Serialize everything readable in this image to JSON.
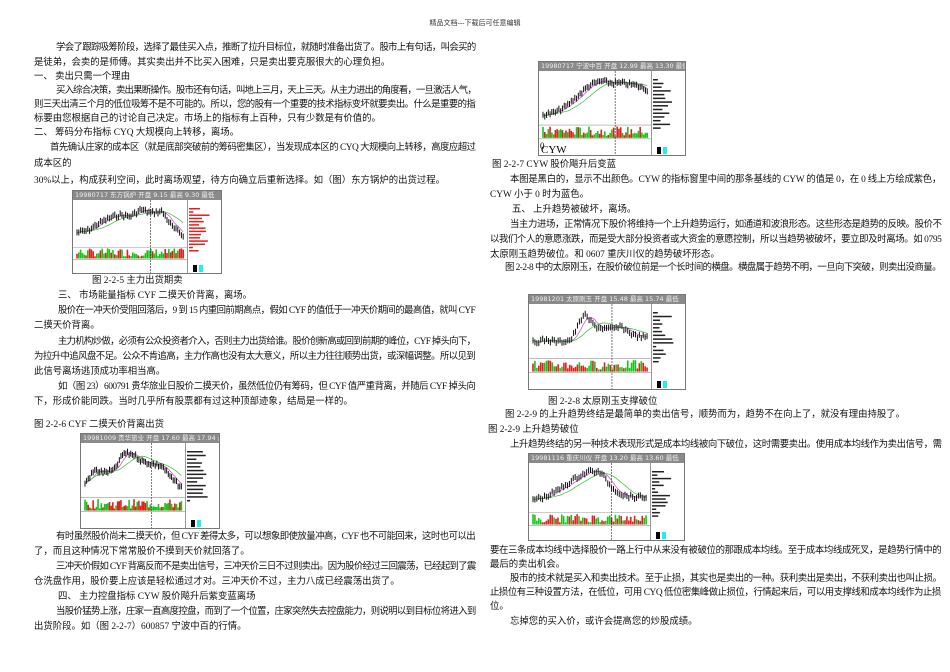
{
  "header": "精品文档---下载后可任意编辑",
  "left": [
    "学会了跟踪吸筹阶段，选择了最佳买入点，推断了拉升目标位，就随时准备出货了。股市上有句话，叫会买的",
    "是徒弟，会卖的是师傅。其实卖出并不比买入困难，只是卖出要克服很大的心理负担。",
    "一、 卖出只需一个理由",
    "买入综合决策，卖出果断操作。股市还有句话，叫地上三月，天上三天。从主力进出的角度看，一旦激活人气，",
    "则三天出清三个月的低位吸筹不是不可能的。所以，您的股有一个重要的技术指标变坏就要卖出。什么是重要的指",
    "标要由您根据自己的讨论自己决定。市场上的指标有上百种，只有少数是有价值的。",
    "二、 筹码分布指标 CYQ 大规模向上转移，离场。",
    "首先确认庄家的成本区（就是底部突破前的筹码密集区），当发现成本区的 CYQ 大规模向上转移，高度应超过",
    "成本区的",
    "30%以上，构成获利空间，此时离场观望，待方向确立后重新选择。如（图）东方锅炉的出货过程。",
    "图 2-2-5 主力出货期卖",
    "三、 市场能量指标 CYF 二摸天价背离，离场。",
    "股价在一冲天价受阻回落后，9 到 15 内重回前期高点，假如 CYF 的值低于一冲天价期间的最高值，就叫 CYF",
    "二摸天价背离。",
    "主力机构炒做，必须有公众投资者介入，否则主力出货给谁。股价创新高或回到前期的峰位，CYF 掉头向下，",
    "为拉升中追风盘不足。公众不肯追高，主力作高也没有太大意义，所以主力往往顺势出货，或深幅调整。所以见到",
    "此信号离场逃顶成功率相当高。",
    "如（图 23）600791 贵华旅业日股价二摸天价，虽然低位仍有筹码，但 CYF 值严重背离，并随后 CYF 掉头向",
    "下，形成价能同跌。当时几乎所有股票都有过这种顶部迹象，结局是一样的。",
    "图 2-2-6 CYF 二摸天价背离出货",
    "有时虽然股价尚未二摸天价，但 CYF 差得太多，可以想象即使放量冲高，CYF 也不可能回来，这时也可以出",
    "了，而且这种情况下常常股价不摸到天价就回落了。",
    "三冲天价假如 CYF 背离反而不是卖出信号，三冲天价三日不过则卖出。因为股价经过三回震荡，已经起到了震",
    "仓洗盘作用，股价要上应该是轻松通过才对。三冲天价不过，主力八成已经震荡出货了。",
    "四、 主力控盘指标 CYW 股价飚升后紫变蓝离场",
    "当股价猛势上涨，庄家一直高度控盘，而到了一个位置，庄家突然失去控盘能力，则说明以到目标位将进入到",
    "出货阶段。如（图 2-2-7）600857 宁波中百的行情。"
  ],
  "right": [
    "图 2-2-7 CYW 股价飚升后变蓝",
    "本图是黑白的，显示不出颜色。CYW 的指标窗里中间的那条基线的 CYW 的值是 0，在 0 线上方绘成紫色，",
    "CYW 小于 0 时为蓝色。",
    "五、 上升趋势被破坏，离场。",
    "当主力进场，正常情况下股价将维持一个上升趋势运行，如通道和波浪形态。这些形态是趋势的反映。股价不",
    "以我们个人的意愿涨跌，而是受大部分投资者或大资金的意愿控制，所以当趋势被破坏，要立即及时离场。如 0795",
    "太原刚玉趋势破位。和 0607 重庆川仪的趋势破坏形态。",
    "图 2-2-8 中的太原刚玉，在股价破位前是一个长时间的横盘。横盘属于趋势不明，一旦向下突破，则卖出没商量。",
    "图 2-2-8 太原刚玉支撑破位",
    "图 2-2-9 的上升趋势终结是最简单的卖出信号，顺势而为，趋势不在向上了，就没有理由持股了。",
    "图 2-2-9 上升趋势破位",
    "上升趋势终结的另一种技术表现形式是成本均线被向下破位，这时需要卖出。使用成本均线作为卖出信号，需",
    "要在三条成本均线中选择股价一路上行中从来没有被破位的那跟成本均线。至于成本均线成死叉，是趋势行情中的",
    "最后的卖出机会。",
    "股市的技术就是买入和卖出技术。至于止损，其实也是卖出的一种。获利卖出是卖出，不获利卖出也叫止损。",
    "止损位有三种设置方法，在低位，可用 CYQ 低位密集峰做止损位，行情起来后，可以用支撑线和成本均线作为止损",
    "位。",
    "忘掉您的买入价，或许会提高您的炒股成绩。"
  ],
  "charts": [
    {
      "title": "19980717 东方锅炉 开盘 9.15 最高 9.30 最低"
    },
    {
      "title": "19980717 宁波中百 开盘 12.99 最高 13.30 最低",
      "indicator": "CYW",
      "zero": "0"
    },
    {
      "title": "19981009 贵华旅业 开盘 17.60 最高 17.94 最"
    },
    {
      "title": "19981201 太原刚玉 开盘 15.48 最高 15.74 最低"
    },
    {
      "title": "19981116 重庆川仪 开盘 13.20 最高 13.60 最低"
    }
  ],
  "colors": {
    "up": "#e0201c",
    "down": "#19c419",
    "ma1": "#d040d0",
    "ma2": "#30c030",
    "header": "#8a8a8a"
  }
}
